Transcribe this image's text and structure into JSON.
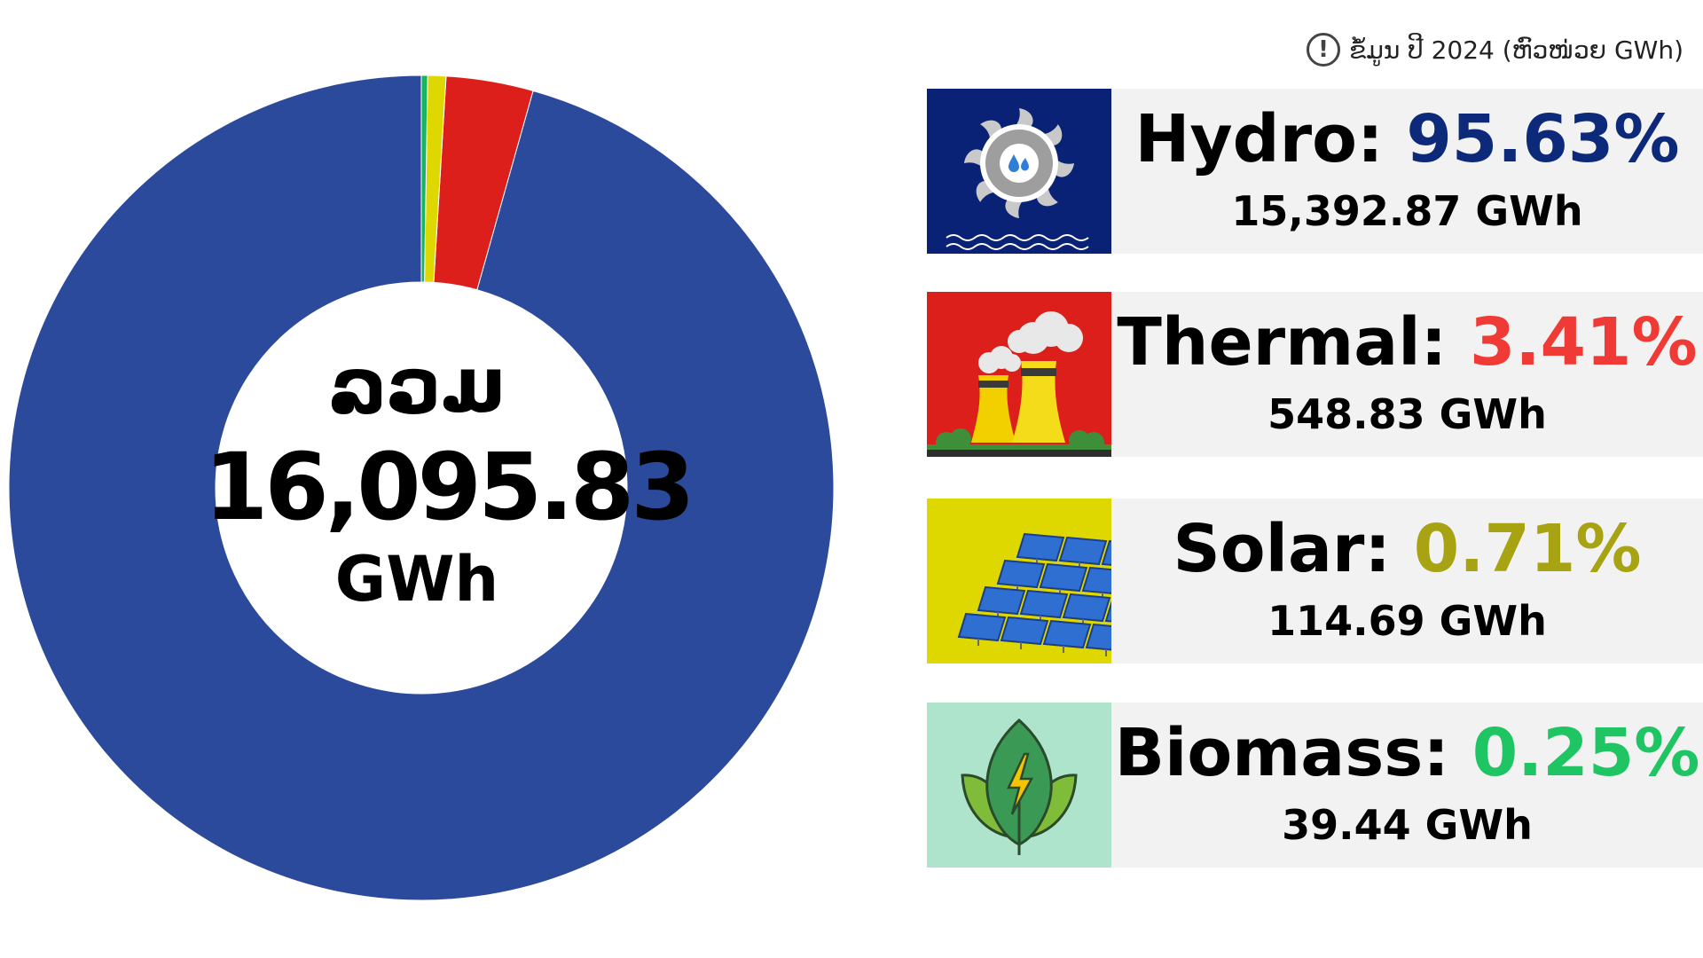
{
  "note": {
    "icon": "info-exclamation-icon",
    "text": "ຂໍ້ມູນ ປີ 2024 (ຫົວໜ່ວຍ GWh)"
  },
  "center": {
    "title": "ລວມ",
    "total": "16,095.83",
    "unit": "GWh"
  },
  "chart_data": {
    "type": "pie",
    "style": "donut",
    "title": "",
    "categories": [
      "Hydro",
      "Thermal",
      "Solar",
      "Biomass"
    ],
    "values": [
      15392.87,
      548.83,
      114.69,
      39.44
    ],
    "percent": [
      95.63,
      3.41,
      0.71,
      0.25
    ],
    "colors": [
      "#2c4a9b",
      "#dd1f1b",
      "#dfd700",
      "#17b35f"
    ],
    "total": 16095.83,
    "unit": "GWh"
  },
  "legend": [
    {
      "name": "Hydro",
      "label": "Hydro:",
      "percent_text": "95.63%",
      "value_text": "15,392.87 GWh",
      "accent": "#0d2a7a",
      "tile_color": "#0a2275",
      "icon": "hydro-turbine-icon"
    },
    {
      "name": "Thermal",
      "label": "Thermal:",
      "percent_text": "3.41%",
      "value_text": "548.83 GWh",
      "accent": "#ef3a35",
      "tile_color": "#dd1f1b",
      "icon": "thermal-cooling-tower-icon"
    },
    {
      "name": "Solar",
      "label": "Solar:",
      "percent_text": "0.71%",
      "value_text": "114.69 GWh",
      "accent": "#a8a312",
      "tile_color": "#dfd700",
      "icon": "solar-panel-icon"
    },
    {
      "name": "Biomass",
      "label": "Biomass:",
      "percent_text": "0.25%",
      "value_text": "39.44 GWh",
      "accent": "#1fc463",
      "tile_color": "#aee3cc",
      "icon": "biomass-leaf-icon"
    }
  ]
}
